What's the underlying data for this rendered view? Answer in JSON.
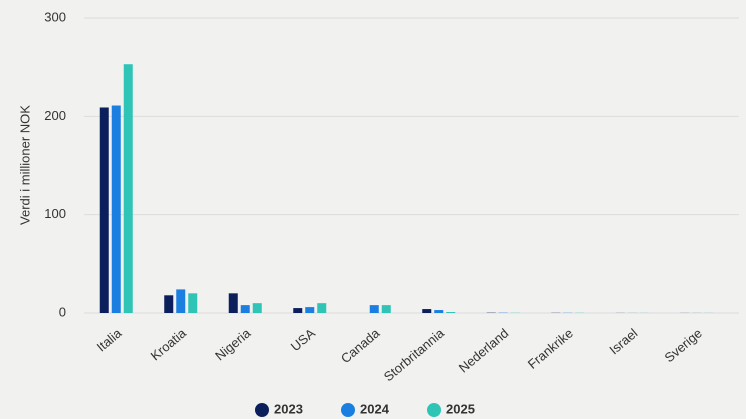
{
  "chart_data": {
    "type": "bar",
    "y_label": "Verdi i millioner NOK",
    "categories": [
      "Italia",
      "Kroatia",
      "Nigeria",
      "USA",
      "Canada",
      "Storbritannia",
      "Nederland",
      "Frankrike",
      "Israel",
      "Sverige"
    ],
    "series": [
      {
        "name": "2023",
        "color": "#0b1f5c",
        "values": [
          209,
          18,
          20,
          5,
          0,
          4,
          0.3,
          0.2,
          0.1,
          0.1
        ]
      },
      {
        "name": "2024",
        "color": "#1a7fe0",
        "values": [
          211,
          24,
          8,
          6,
          8,
          3,
          0.3,
          0.2,
          0.1,
          0.1
        ]
      },
      {
        "name": "2025",
        "color": "#2ec4b6",
        "values": [
          253,
          20,
          10,
          10,
          8,
          1,
          0.2,
          0.2,
          0.1,
          0.1
        ]
      }
    ],
    "ylim": [
      0,
      300
    ],
    "yticks": [
      0,
      100,
      200,
      300
    ],
    "grid": true
  }
}
